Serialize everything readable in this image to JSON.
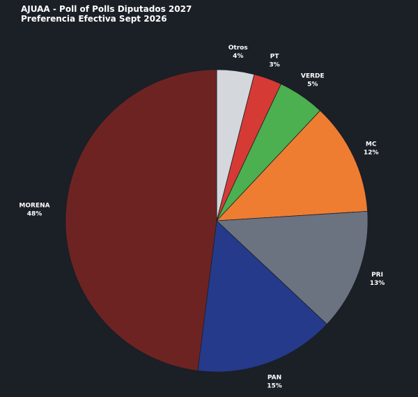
{
  "chart_data": {
    "type": "pie",
    "title": "AJUAA - Poll of Polls Diputados 2027",
    "subtitle": "Preferencia Efectiva Sept 2026",
    "categories": [
      "Otros",
      "PT",
      "VERDE",
      "MC",
      "PRI",
      "PAN",
      "MORENA"
    ],
    "values": [
      4,
      3,
      5,
      12,
      13,
      15,
      48
    ],
    "value_labels": [
      "4%",
      "3%",
      "5%",
      "12%",
      "13%",
      "15%",
      "48%"
    ],
    "colors": [
      "#d4d7dc",
      "#d63a35",
      "#4caf50",
      "#ee7d32",
      "#6b7280",
      "#253a8a",
      "#6e2323"
    ]
  }
}
